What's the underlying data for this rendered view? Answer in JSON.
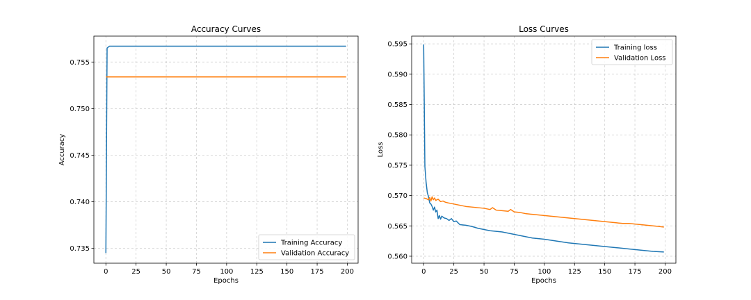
{
  "chart_data": [
    {
      "type": "line",
      "title": "Accuracy Curves",
      "xlabel": "Epochs",
      "ylabel": "Accuracy",
      "xlim": [
        -9.95,
        208.95
      ],
      "ylim": [
        0.73341,
        0.75778
      ],
      "x_ticks": [
        0,
        25,
        50,
        75,
        100,
        125,
        150,
        175,
        200
      ],
      "y_ticks": [
        0.735,
        0.74,
        0.745,
        0.75,
        0.755
      ],
      "y_tick_labels": [
        "0.735",
        "0.740",
        "0.745",
        "0.750",
        "0.755"
      ],
      "grid": true,
      "legend_position": "lower right",
      "series": [
        {
          "name": "Training Accuracy",
          "color": "#1f77b4",
          "x": [
            0,
            1,
            2,
            3,
            4,
            5,
            10,
            20,
            50,
            100,
            150,
            199
          ],
          "y": [
            0.7345,
            0.7565,
            0.7566,
            0.7567,
            0.7567,
            0.7567,
            0.7567,
            0.7567,
            0.7567,
            0.7567,
            0.7567,
            0.7567
          ]
        },
        {
          "name": "Validation Accuracy",
          "color": "#ff7f0e",
          "x": [
            0,
            50,
            100,
            150,
            199
          ],
          "y": [
            0.7534,
            0.7534,
            0.7534,
            0.7534,
            0.7534
          ]
        }
      ]
    },
    {
      "type": "line",
      "title": "Loss Curves",
      "xlabel": "Epochs",
      "ylabel": "Loss",
      "xlim": [
        -9.95,
        208.95
      ],
      "ylim": [
        0.55885,
        0.59628
      ],
      "x_ticks": [
        0,
        25,
        50,
        75,
        100,
        125,
        150,
        175,
        200
      ],
      "y_ticks": [
        0.56,
        0.565,
        0.57,
        0.575,
        0.58,
        0.585,
        0.59,
        0.595
      ],
      "y_tick_labels": [
        "0.560",
        "0.565",
        "0.570",
        "0.575",
        "0.580",
        "0.585",
        "0.590",
        "0.595"
      ],
      "grid": true,
      "legend_position": "upper right",
      "series": [
        {
          "name": "Training loss",
          "color": "#1f77b4",
          "x": [
            0,
            1,
            2,
            3,
            4,
            5,
            6,
            7,
            8,
            9,
            10,
            11,
            12,
            13,
            14,
            15,
            17,
            19,
            21,
            23,
            25,
            27,
            30,
            35,
            40,
            45,
            50,
            55,
            60,
            65,
            70,
            75,
            80,
            85,
            90,
            95,
            100,
            110,
            120,
            130,
            140,
            150,
            160,
            170,
            180,
            190,
            199
          ],
          "y": [
            0.5949,
            0.5748,
            0.5722,
            0.5705,
            0.5698,
            0.5688,
            0.5686,
            0.5682,
            0.5676,
            0.5681,
            0.5673,
            0.5676,
            0.5662,
            0.5667,
            0.5661,
            0.5666,
            0.5663,
            0.5662,
            0.5659,
            0.5662,
            0.5657,
            0.5658,
            0.5652,
            0.5651,
            0.5649,
            0.5646,
            0.5644,
            0.5642,
            0.5641,
            0.564,
            0.5638,
            0.5636,
            0.5634,
            0.5632,
            0.563,
            0.5629,
            0.5628,
            0.5625,
            0.5622,
            0.562,
            0.5618,
            0.5616,
            0.5614,
            0.5612,
            0.561,
            0.5608,
            0.5607
          ]
        },
        {
          "name": "Validation Loss",
          "color": "#ff7f0e",
          "x": [
            0,
            2,
            4,
            5,
            6,
            7,
            8,
            9,
            10,
            12,
            14,
            16,
            18,
            20,
            25,
            30,
            35,
            40,
            45,
            50,
            55,
            57,
            60,
            65,
            70,
            72,
            75,
            80,
            85,
            90,
            95,
            100,
            105,
            110,
            115,
            120,
            125,
            130,
            135,
            140,
            145,
            150,
            155,
            160,
            165,
            170,
            175,
            180,
            185,
            190,
            195,
            199
          ],
          "y": [
            0.5696,
            0.5695,
            0.5693,
            0.5697,
            0.5691,
            0.5698,
            0.5693,
            0.5696,
            0.5692,
            0.5694,
            0.569,
            0.5691,
            0.5689,
            0.5688,
            0.5686,
            0.5684,
            0.5682,
            0.5681,
            0.568,
            0.5679,
            0.5677,
            0.568,
            0.5676,
            0.5675,
            0.5674,
            0.5677,
            0.5673,
            0.5672,
            0.567,
            0.5669,
            0.5668,
            0.5667,
            0.5666,
            0.5665,
            0.5664,
            0.5663,
            0.5662,
            0.5661,
            0.566,
            0.5659,
            0.5658,
            0.5657,
            0.5656,
            0.5655,
            0.5654,
            0.5654,
            0.5653,
            0.5652,
            0.5651,
            0.565,
            0.5649,
            0.5648
          ]
        }
      ]
    }
  ]
}
